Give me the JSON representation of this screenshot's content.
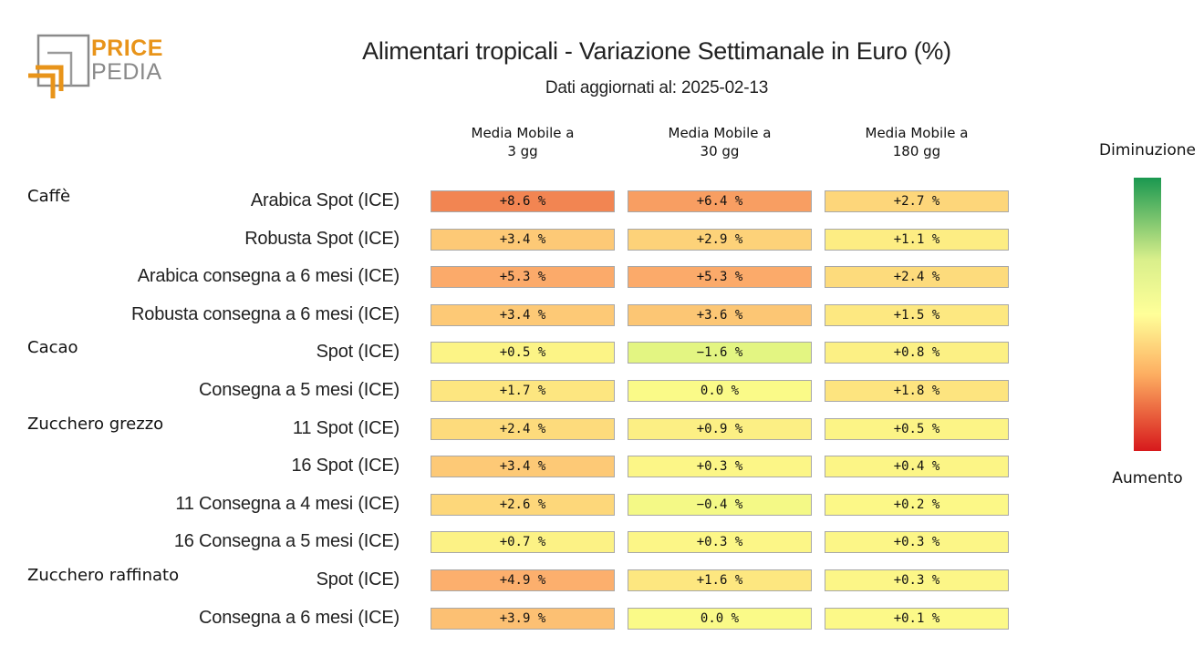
{
  "logo": {
    "word1": "PRICE",
    "word2": "PEDIA",
    "accent": "#e8941a",
    "gray": "#8a8a8a"
  },
  "chart_data": {
    "type": "heatmap",
    "title": "Alimentari tropicali - Variazione Settimanale in Euro (%)",
    "subtitle": "Dati aggiornati al: 2025-02-13",
    "columns": [
      {
        "line1": "Media Mobile a",
        "line2": "3 gg"
      },
      {
        "line1": "Media Mobile a",
        "line2": "30 gg"
      },
      {
        "line1": "Media Mobile a",
        "line2": "180 gg"
      }
    ],
    "groups": [
      {
        "name": "Caffè",
        "start_row": 0
      },
      {
        "name": "Cacao",
        "start_row": 4
      },
      {
        "name": "Zucchero grezzo",
        "start_row": 6
      },
      {
        "name": "Zucchero raffinato",
        "start_row": 10
      }
    ],
    "rows": [
      {
        "label": "Arabica Spot (ICE)",
        "values": [
          8.6,
          6.4,
          2.7
        ],
        "texts": [
          "+8.6 %",
          "+6.4 %",
          "+2.7 %"
        ]
      },
      {
        "label": "Robusta Spot (ICE)",
        "values": [
          3.4,
          2.9,
          1.1
        ],
        "texts": [
          "+3.4 %",
          "+2.9 %",
          "+1.1 %"
        ]
      },
      {
        "label": "Arabica consegna a 6 mesi (ICE)",
        "values": [
          5.3,
          5.3,
          2.4
        ],
        "texts": [
          "+5.3 %",
          "+5.3 %",
          "+2.4 %"
        ]
      },
      {
        "label": "Robusta consegna a 6 mesi (ICE)",
        "values": [
          3.4,
          3.6,
          1.5
        ],
        "texts": [
          "+3.4 %",
          "+3.6 %",
          "+1.5 %"
        ]
      },
      {
        "label": "Spot (ICE)",
        "values": [
          0.5,
          -1.6,
          0.8
        ],
        "texts": [
          "+0.5 %",
          "−1.6 %",
          "+0.8 %"
        ]
      },
      {
        "label": "Consegna a 5 mesi (ICE)",
        "values": [
          1.7,
          0.0,
          1.8
        ],
        "texts": [
          "+1.7 %",
          "0.0 %",
          "+1.8 %"
        ]
      },
      {
        "label": "11 Spot (ICE)",
        "values": [
          2.4,
          0.9,
          0.5
        ],
        "texts": [
          "+2.4 %",
          "+0.9 %",
          "+0.5 %"
        ]
      },
      {
        "label": "16 Spot (ICE)",
        "values": [
          3.4,
          0.3,
          0.4
        ],
        "texts": [
          "+3.4 %",
          "+0.3 %",
          "+0.4 %"
        ]
      },
      {
        "label": "11 Consegna a 4 mesi (ICE)",
        "values": [
          2.6,
          -0.4,
          0.2
        ],
        "texts": [
          "+2.6 %",
          "−0.4 %",
          "+0.2 %"
        ]
      },
      {
        "label": "16 Consegna a 5 mesi (ICE)",
        "values": [
          0.7,
          0.3,
          0.3
        ],
        "texts": [
          "+0.7 %",
          "+0.3 %",
          "+0.3 %"
        ]
      },
      {
        "label": "Spot (ICE)",
        "values": [
          4.9,
          1.6,
          0.3
        ],
        "texts": [
          "+4.9 %",
          "+1.6 %",
          "+0.3 %"
        ]
      },
      {
        "label": "Consegna a 6 mesi (ICE)",
        "values": [
          3.9,
          0.0,
          0.1
        ],
        "texts": [
          "+3.9 %",
          "0.0 %",
          "+0.1 %"
        ]
      }
    ],
    "legend": {
      "top_label": "Diminuzione",
      "bottom_label": "Aumento",
      "colors": [
        "#1a9850",
        "#d9ef8b",
        "#ffff99",
        "#fdae61",
        "#d7191c"
      ]
    }
  }
}
